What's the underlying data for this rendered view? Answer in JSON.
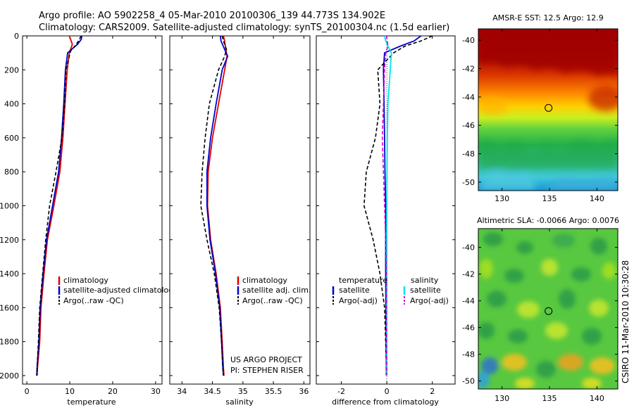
{
  "header": {
    "line1": "Argo profile: AO 5902258_4 05-Mar-2010 20100306_139 44.773S 134.902E",
    "line2": "Climatology: CARS2009. Satellite-adjusted climatology: synTS_20100304.nc (1.5d earlier)"
  },
  "side_label": "CSIRO 11-Mar-2010 10:30:28",
  "project": {
    "line1": "US ARGO PROJECT",
    "line2": "PI: STEPHEN RISER"
  },
  "colors": {
    "red": "#dd0000",
    "blue": "#0000cc",
    "black": "#000000",
    "cyan": "#00e5ee",
    "magenta": "#dd00dd"
  },
  "chart_data": [
    {
      "type": "line",
      "id": "temperature",
      "xlabel": "temperature",
      "ylabel": "",
      "xlim": [
        -1,
        31.5
      ],
      "ylim": [
        0,
        2050
      ],
      "xticks": [
        "0",
        "10",
        "20",
        "30"
      ],
      "yticks": [
        "0",
        "200",
        "400",
        "600",
        "800",
        "1000",
        "1200",
        "1400",
        "1600",
        "1800",
        "2000"
      ],
      "legend": [
        "climatology",
        "satellite-adjusted climatology",
        "Argo(..raw -QC)"
      ],
      "series": [
        {
          "name": "climatology",
          "color": "red",
          "style": "solid",
          "x": [
            9.9,
            10.2,
            10.6,
            9.9,
            9.4,
            8.9,
            8.4,
            7.7,
            6.3,
            4.8,
            4.0,
            3.3,
            3.0,
            2.5,
            2.4
          ],
          "y": [
            0,
            20,
            50,
            100,
            200,
            400,
            600,
            800,
            1000,
            1200,
            1400,
            1600,
            1800,
            1950,
            2000
          ]
        },
        {
          "name": "satellite-adjusted climatology",
          "color": "blue",
          "style": "solid",
          "x": [
            12.8,
            12.7,
            11.8,
            9.5,
            9.0,
            8.6,
            8.1,
            7.4,
            6.0,
            4.6,
            3.8,
            3.1,
            2.8,
            2.4,
            2.3
          ],
          "y": [
            0,
            20,
            50,
            100,
            200,
            400,
            600,
            800,
            1000,
            1200,
            1400,
            1600,
            1800,
            1950,
            2000
          ]
        },
        {
          "name": "Argo(..raw -QC)",
          "color": "black",
          "style": "dashed",
          "x": [
            12.6,
            12.3,
            11.5,
            10.2,
            9.1,
            8.8,
            8.2,
            6.8,
            5.3,
            4.4,
            3.7,
            3.0,
            2.7,
            2.4,
            2.3
          ],
          "y": [
            0,
            20,
            50,
            90,
            200,
            400,
            600,
            800,
            1000,
            1200,
            1400,
            1600,
            1800,
            1950,
            2000
          ]
        }
      ]
    },
    {
      "type": "line",
      "id": "salinity",
      "xlabel": "salinity",
      "ylabel": "",
      "xlim": [
        33.8,
        36.1
      ],
      "ylim": [
        0,
        2050
      ],
      "xticks": [
        "34",
        "34.5",
        "35",
        "35.5",
        "36"
      ],
      "legend": [
        "climatology",
        "satellite adj. clim.",
        "Argo(..raw -QC)"
      ],
      "series": [
        {
          "name": "climatology",
          "color": "red",
          "style": "solid",
          "x": [
            34.68,
            34.7,
            34.72,
            34.74,
            34.7,
            34.6,
            34.5,
            34.43,
            34.42,
            34.47,
            34.56,
            34.63,
            34.66,
            34.68,
            34.69
          ],
          "y": [
            0,
            30,
            80,
            120,
            200,
            400,
            600,
            800,
            1000,
            1200,
            1400,
            1600,
            1800,
            1950,
            2000
          ]
        },
        {
          "name": "satellite adj. clim.",
          "color": "blue",
          "style": "solid",
          "x": [
            34.63,
            34.64,
            34.7,
            34.75,
            34.66,
            34.56,
            34.47,
            34.41,
            34.41,
            34.46,
            34.55,
            34.62,
            34.65,
            34.67,
            34.68
          ],
          "y": [
            0,
            30,
            80,
            120,
            200,
            400,
            600,
            800,
            1000,
            1200,
            1400,
            1600,
            1800,
            1950,
            2000
          ]
        },
        {
          "name": "Argo(..raw -QC)",
          "color": "black",
          "style": "dashed",
          "x": [
            34.66,
            34.68,
            34.73,
            34.7,
            34.6,
            34.45,
            34.38,
            34.33,
            34.31,
            34.41,
            34.53,
            34.61,
            34.65,
            34.67,
            34.68
          ],
          "y": [
            0,
            30,
            80,
            120,
            200,
            400,
            600,
            800,
            1000,
            1200,
            1400,
            1600,
            1800,
            1950,
            2000
          ]
        }
      ]
    },
    {
      "type": "line",
      "id": "difference",
      "xlabel": "difference from climatology",
      "ylabel": "",
      "xlim": [
        -3.1,
        3.0
      ],
      "ylim": [
        0,
        2050
      ],
      "xticks": [
        "-2",
        "0",
        "2"
      ],
      "legend_left_title": "temperature",
      "legend_right_title": "salinity",
      "legend_left": [
        "satellite",
        "Argo(-adj)"
      ],
      "legend_right": [
        "satellite",
        "Argo(-adj)"
      ],
      "series": [
        {
          "name": "temperature satellite",
          "color": "blue",
          "style": "solid",
          "x": [
            1.5,
            1.2,
            0.6,
            -0.1,
            -0.15,
            -0.12,
            -0.1,
            -0.08,
            -0.05,
            -0.05,
            -0.05,
            -0.04,
            -0.03,
            -0.02,
            -0.02
          ],
          "y": [
            0,
            30,
            60,
            100,
            200,
            400,
            600,
            800,
            1000,
            1200,
            1400,
            1600,
            1800,
            1950,
            2000
          ]
        },
        {
          "name": "temperature Argo(-adj)",
          "color": "black",
          "style": "dashed",
          "x": [
            2.0,
            1.5,
            0.8,
            0.3,
            -0.4,
            -0.3,
            -0.5,
            -0.9,
            -1.0,
            -0.6,
            -0.3,
            -0.1,
            -0.05,
            -0.02,
            -0.02
          ],
          "y": [
            0,
            30,
            60,
            100,
            200,
            400,
            600,
            800,
            1000,
            1200,
            1400,
            1600,
            1800,
            1950,
            2000
          ]
        },
        {
          "name": "salinity satellite",
          "color": "cyan",
          "style": "solid",
          "x": [
            -0.1,
            -0.05,
            0.05,
            0.2,
            0.15,
            0.05,
            0.02,
            0.01,
            0.0,
            0.0,
            0.0,
            0.0,
            0.0,
            0.0,
            0.0
          ],
          "y": [
            0,
            30,
            60,
            100,
            200,
            400,
            600,
            800,
            1000,
            1200,
            1400,
            1600,
            1800,
            1950,
            2000
          ]
        },
        {
          "name": "salinity Argo(-adj)",
          "color": "magenta",
          "style": "dashed",
          "x": [
            -0.02,
            0.02,
            0.05,
            -0.05,
            -0.1,
            -0.15,
            -0.2,
            -0.15,
            -0.1,
            -0.05,
            -0.02,
            -0.02,
            -0.01,
            0.0,
            0.0
          ],
          "y": [
            0,
            30,
            60,
            100,
            200,
            400,
            600,
            800,
            1000,
            1200,
            1400,
            1600,
            1800,
            1950,
            2000
          ]
        }
      ]
    },
    {
      "type": "heatmap",
      "id": "sst_map",
      "title": "AMSR-E SST: 12.5 Argo: 12.9",
      "xlim": [
        127.5,
        142.2
      ],
      "ylim": [
        -50.6,
        -39.2
      ],
      "xticks": [
        "130",
        "135",
        "140"
      ],
      "yticks": [
        "-40",
        "-42",
        "-44",
        "-46",
        "-48",
        "-50"
      ],
      "marker": {
        "lon": 134.9,
        "lat": -44.77
      },
      "description_colors": "north warm (dark red ~ -40 to -42), orange/yellow near -44, green/cyan south of -47"
    },
    {
      "type": "heatmap",
      "id": "sla_map",
      "title": "Altimetric SLA: -0.0066 Argo: 0.0076",
      "xlim": [
        127.5,
        142.2
      ],
      "ylim": [
        -50.6,
        -38.6
      ],
      "xticks": [
        "130",
        "135",
        "140"
      ],
      "yticks": [
        "-40",
        "-42",
        "-44",
        "-46",
        "-48",
        "-50"
      ],
      "marker": {
        "lon": 134.9,
        "lat": -44.77
      }
    }
  ]
}
